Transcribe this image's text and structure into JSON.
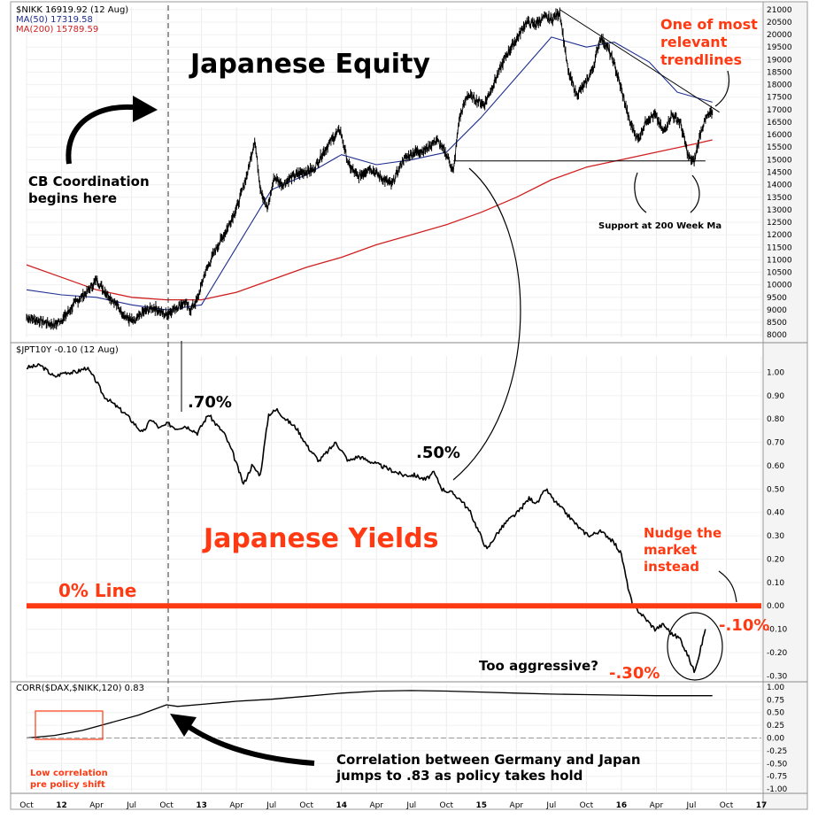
{
  "chart_data": [
    {
      "type": "line",
      "series": [
        {
          "name": "$NIKK 16919.92 (12 Aug)",
          "color": "#000000"
        },
        {
          "name": "MA(50) 17319.58",
          "color": "#1f2f8f"
        },
        {
          "name": "MA(200) 15789.59",
          "color": "#d01f1f"
        }
      ],
      "x_ticks": [
        "Oct",
        "12",
        "Apr",
        "Jul",
        "Oct",
        "13",
        "Apr",
        "Jul",
        "Oct",
        "14",
        "Apr",
        "Jul",
        "Oct",
        "15",
        "Apr",
        "Jul",
        "Oct",
        "16",
        "Apr",
        "Jul",
        "Oct",
        "17"
      ],
      "y_ticks": [
        21000,
        20500,
        20000,
        19500,
        19000,
        18500,
        18000,
        17500,
        17000,
        16500,
        16000,
        15500,
        15000,
        14500,
        14000,
        13500,
        13000,
        12500,
        12000,
        11500,
        11000,
        10500,
        10000,
        9500,
        9000,
        8500,
        8000
      ],
      "ylim": [
        7900,
        21100
      ],
      "nikkei_path": [
        [
          2011.75,
          8700
        ],
        [
          2011.85,
          8550
        ],
        [
          2011.95,
          8400
        ],
        [
          2012.02,
          8700
        ],
        [
          2012.1,
          9300
        ],
        [
          2012.18,
          9700
        ],
        [
          2012.25,
          10200
        ],
        [
          2012.3,
          9800
        ],
        [
          2012.38,
          9300
        ],
        [
          2012.46,
          8700
        ],
        [
          2012.52,
          8500
        ],
        [
          2012.58,
          8900
        ],
        [
          2012.66,
          9100
        ],
        [
          2012.74,
          8800
        ],
        [
          2012.82,
          9100
        ],
        [
          2012.88,
          9300
        ],
        [
          2012.92,
          9000
        ],
        [
          2012.97,
          9400
        ],
        [
          2013.02,
          10400
        ],
        [
          2013.1,
          11400
        ],
        [
          2013.18,
          12200
        ],
        [
          2013.26,
          13200
        ],
        [
          2013.33,
          14500
        ],
        [
          2013.38,
          15800
        ],
        [
          2013.42,
          13900
        ],
        [
          2013.47,
          13000
        ],
        [
          2013.52,
          14300
        ],
        [
          2013.58,
          14000
        ],
        [
          2013.64,
          14300
        ],
        [
          2013.72,
          14500
        ],
        [
          2013.8,
          14600
        ],
        [
          2013.86,
          15200
        ],
        [
          2013.93,
          15800
        ],
        [
          2013.99,
          16200
        ],
        [
          2014.05,
          14800
        ],
        [
          2014.12,
          14300
        ],
        [
          2014.2,
          14700
        ],
        [
          2014.28,
          14300
        ],
        [
          2014.36,
          14000
        ],
        [
          2014.44,
          15000
        ],
        [
          2014.52,
          15300
        ],
        [
          2014.6,
          15400
        ],
        [
          2014.68,
          15800
        ],
        [
          2014.76,
          15100
        ],
        [
          2014.8,
          14500
        ],
        [
          2014.84,
          16600
        ],
        [
          2014.9,
          17600
        ],
        [
          2014.96,
          17400
        ],
        [
          2015.02,
          17200
        ],
        [
          2015.1,
          18200
        ],
        [
          2015.18,
          19200
        ],
        [
          2015.26,
          19900
        ],
        [
          2015.32,
          20500
        ],
        [
          2015.38,
          20400
        ],
        [
          2015.45,
          20700
        ],
        [
          2015.5,
          20600
        ],
        [
          2015.56,
          20900
        ],
        [
          2015.62,
          18500
        ],
        [
          2015.68,
          17600
        ],
        [
          2015.74,
          18000
        ],
        [
          2015.8,
          18700
        ],
        [
          2015.85,
          19900
        ],
        [
          2015.9,
          19500
        ],
        [
          2015.95,
          18800
        ],
        [
          2016.0,
          17800
        ],
        [
          2016.06,
          16500
        ],
        [
          2016.12,
          15800
        ],
        [
          2016.18,
          16600
        ],
        [
          2016.24,
          16800
        ],
        [
          2016.3,
          16100
        ],
        [
          2016.36,
          16800
        ],
        [
          2016.42,
          16500
        ],
        [
          2016.48,
          15100
        ],
        [
          2016.52,
          14900
        ],
        [
          2016.57,
          16200
        ],
        [
          2016.61,
          16700
        ],
        [
          2016.65,
          16900
        ]
      ],
      "ma50_path": [
        [
          2011.75,
          9800
        ],
        [
          2012.0,
          9600
        ],
        [
          2012.25,
          9500
        ],
        [
          2012.5,
          9200
        ],
        [
          2012.75,
          9000
        ],
        [
          2013.0,
          9200
        ],
        [
          2013.25,
          11500
        ],
        [
          2013.5,
          13800
        ],
        [
          2013.75,
          14400
        ],
        [
          2014.0,
          15200
        ],
        [
          2014.25,
          14800
        ],
        [
          2014.5,
          15000
        ],
        [
          2014.75,
          15300
        ],
        [
          2015.0,
          16700
        ],
        [
          2015.25,
          18300
        ],
        [
          2015.5,
          19900
        ],
        [
          2015.75,
          19500
        ],
        [
          2015.95,
          19700
        ],
        [
          2016.2,
          18900
        ],
        [
          2016.4,
          17700
        ],
        [
          2016.65,
          17300
        ]
      ],
      "ma200_path": [
        [
          2011.75,
          10800
        ],
        [
          2012.0,
          10300
        ],
        [
          2012.25,
          9800
        ],
        [
          2012.5,
          9500
        ],
        [
          2012.75,
          9400
        ],
        [
          2013.0,
          9400
        ],
        [
          2013.25,
          9700
        ],
        [
          2013.5,
          10200
        ],
        [
          2013.75,
          10700
        ],
        [
          2014.0,
          11100
        ],
        [
          2014.25,
          11600
        ],
        [
          2014.5,
          12000
        ],
        [
          2014.75,
          12400
        ],
        [
          2015.0,
          12900
        ],
        [
          2015.25,
          13500
        ],
        [
          2015.5,
          14200
        ],
        [
          2015.75,
          14700
        ],
        [
          2016.0,
          15000
        ],
        [
          2016.25,
          15300
        ],
        [
          2016.5,
          15600
        ],
        [
          2016.65,
          15790
        ]
      ],
      "trendline": [
        [
          2015.56,
          21000
        ],
        [
          2016.7,
          16900
        ]
      ],
      "support_line": [
        [
          2014.8,
          14950
        ],
        [
          2016.6,
          14950
        ]
      ],
      "title": "Japanese Equity",
      "annotations": [
        "One of most",
        "relevant",
        "trendlines",
        "Support at 200 Week Ma",
        "CB Coordination",
        "begins here"
      ]
    },
    {
      "type": "line",
      "series": [
        {
          "name": "$JPT10Y -0.10 (12 Aug)",
          "color": "#000000"
        }
      ],
      "y_ticks": [
        1.0,
        0.9,
        0.8,
        0.7,
        0.6,
        0.5,
        0.4,
        0.3,
        0.2,
        0.1,
        0.0,
        -0.1,
        -0.2,
        -0.3
      ],
      "y_tick_labels": [
        "1.00",
        "0.90",
        "0.80",
        "0.70",
        "0.60",
        "0.50",
        "0.40",
        "0.30",
        "0.20",
        "0.10",
        "0.00",
        "-0.10",
        "-0.20",
        "-0.30"
      ],
      "ylim": [
        -0.31,
        1.07
      ],
      "yield_path": [
        [
          2011.75,
          1.02
        ],
        [
          2011.85,
          1.03
        ],
        [
          2011.95,
          0.98
        ],
        [
          2012.02,
          1.0
        ],
        [
          2012.1,
          1.0
        ],
        [
          2012.18,
          1.02
        ],
        [
          2012.25,
          0.96
        ],
        [
          2012.3,
          0.9
        ],
        [
          2012.38,
          0.86
        ],
        [
          2012.46,
          0.82
        ],
        [
          2012.52,
          0.78
        ],
        [
          2012.58,
          0.74
        ],
        [
          2012.64,
          0.8
        ],
        [
          2012.7,
          0.76
        ],
        [
          2012.76,
          0.78
        ],
        [
          2012.82,
          0.76
        ],
        [
          2012.88,
          0.77
        ],
        [
          2012.92,
          0.76
        ],
        [
          2012.97,
          0.74
        ],
        [
          2013.05,
          0.82
        ],
        [
          2013.1,
          0.78
        ],
        [
          2013.16,
          0.74
        ],
        [
          2013.22,
          0.66
        ],
        [
          2013.3,
          0.52
        ],
        [
          2013.36,
          0.6
        ],
        [
          2013.42,
          0.56
        ],
        [
          2013.48,
          0.82
        ],
        [
          2013.54,
          0.84
        ],
        [
          2013.6,
          0.8
        ],
        [
          2013.68,
          0.76
        ],
        [
          2013.76,
          0.68
        ],
        [
          2013.84,
          0.62
        ],
        [
          2013.9,
          0.66
        ],
        [
          2013.96,
          0.7
        ],
        [
          2014.05,
          0.62
        ],
        [
          2014.12,
          0.64
        ],
        [
          2014.2,
          0.62
        ],
        [
          2014.28,
          0.6
        ],
        [
          2014.36,
          0.58
        ],
        [
          2014.44,
          0.56
        ],
        [
          2014.52,
          0.56
        ],
        [
          2014.6,
          0.54
        ],
        [
          2014.66,
          0.57
        ],
        [
          2014.72,
          0.5
        ],
        [
          2014.8,
          0.48
        ],
        [
          2014.86,
          0.45
        ],
        [
          2014.92,
          0.4
        ],
        [
          2014.98,
          0.32
        ],
        [
          2015.04,
          0.24
        ],
        [
          2015.1,
          0.3
        ],
        [
          2015.18,
          0.36
        ],
        [
          2015.26,
          0.4
        ],
        [
          2015.34,
          0.46
        ],
        [
          2015.4,
          0.44
        ],
        [
          2015.46,
          0.5
        ],
        [
          2015.52,
          0.45
        ],
        [
          2015.6,
          0.4
        ],
        [
          2015.66,
          0.36
        ],
        [
          2015.72,
          0.32
        ],
        [
          2015.78,
          0.3
        ],
        [
          2015.84,
          0.32
        ],
        [
          2015.9,
          0.3
        ],
        [
          2015.96,
          0.26
        ],
        [
          2016.0,
          0.22
        ],
        [
          2016.04,
          0.1
        ],
        [
          2016.08,
          0.0
        ],
        [
          2016.12,
          -0.02
        ],
        [
          2016.18,
          -0.06
        ],
        [
          2016.24,
          -0.1
        ],
        [
          2016.3,
          -0.08
        ],
        [
          2016.36,
          -0.12
        ],
        [
          2016.42,
          -0.14
        ],
        [
          2016.48,
          -0.22
        ],
        [
          2016.52,
          -0.28
        ],
        [
          2016.56,
          -0.2
        ],
        [
          2016.6,
          -0.1
        ]
      ],
      "title": "Japanese Yields",
      "annotations": [
        ".70%",
        ".50%",
        "0% Line",
        "Nudge the",
        "market",
        "instead",
        "-.10%",
        "Too aggressive?",
        "-.30%"
      ]
    },
    {
      "type": "line",
      "series": [
        {
          "name": "CORR($DAX,$NIKK,120) 0.83",
          "color": "#000000"
        }
      ],
      "y_ticks": [
        1.0,
        0.75,
        0.5,
        0.25,
        0.0,
        -0.25,
        -0.5,
        -0.75,
        -1.0
      ],
      "y_tick_labels": [
        "1.00",
        "0.75",
        "0.50",
        "0.25",
        "0.00",
        "-0.25",
        "-0.50",
        "-0.75",
        "-1.00"
      ],
      "ylim": [
        -1.05,
        1.05
      ],
      "corr_path": [
        [
          2011.75,
          0.0
        ],
        [
          2011.95,
          0.05
        ],
        [
          2012.15,
          0.15
        ],
        [
          2012.35,
          0.3
        ],
        [
          2012.55,
          0.45
        ],
        [
          2012.75,
          0.65
        ],
        [
          2012.83,
          0.62
        ],
        [
          2013.0,
          0.66
        ],
        [
          2013.25,
          0.72
        ],
        [
          2013.5,
          0.76
        ],
        [
          2013.75,
          0.82
        ],
        [
          2014.0,
          0.88
        ],
        [
          2014.25,
          0.92
        ],
        [
          2014.5,
          0.93
        ],
        [
          2014.75,
          0.92
        ],
        [
          2015.0,
          0.9
        ],
        [
          2015.25,
          0.88
        ],
        [
          2015.5,
          0.86
        ],
        [
          2015.75,
          0.85
        ],
        [
          2016.0,
          0.84
        ],
        [
          2016.25,
          0.83
        ],
        [
          2016.5,
          0.83
        ],
        [
          2016.65,
          0.83
        ]
      ],
      "annotations": [
        "Correlation between Germany and Japan",
        "jumps to .83 as policy takes hold",
        "Low correlation",
        "pre policy shift"
      ]
    }
  ]
}
